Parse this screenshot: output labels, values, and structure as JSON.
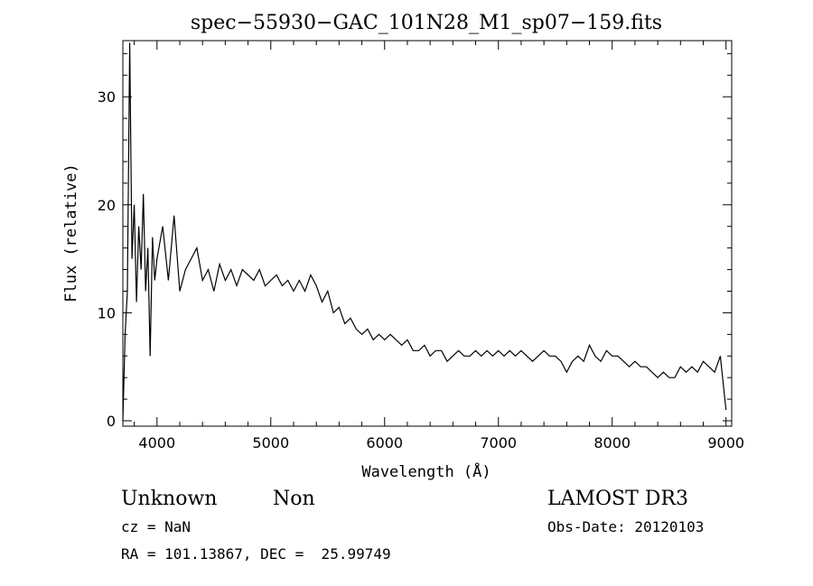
{
  "chart_data": {
    "type": "line",
    "title": "spec−55930−GAC_101N28_M1_sp07−159.fits",
    "xlabel": "Wavelength (Å)",
    "ylabel": "Flux (relative)",
    "xlim": [
      3700,
      9050
    ],
    "ylim": [
      -0.5,
      35.2
    ],
    "x_ticks": [
      4000,
      5000,
      6000,
      7000,
      8000,
      9000
    ],
    "y_ticks": [
      0,
      10,
      20,
      30
    ],
    "grid": false,
    "series": [
      {
        "x": [
          3700,
          3720,
          3740,
          3760,
          3780,
          3800,
          3820,
          3840,
          3860,
          3880,
          3900,
          3920,
          3940,
          3960,
          3980,
          4000,
          4050,
          4100,
          4150,
          4200,
          4250,
          4300,
          4350,
          4400,
          4450,
          4500,
          4550,
          4600,
          4650,
          4700,
          4750,
          4800,
          4850,
          4900,
          4950,
          5000,
          5050,
          5100,
          5150,
          5200,
          5250,
          5300,
          5350,
          5400,
          5450,
          5500,
          5550,
          5600,
          5650,
          5700,
          5750,
          5800,
          5850,
          5900,
          5950,
          6000,
          6050,
          6100,
          6150,
          6200,
          6250,
          6300,
          6350,
          6400,
          6450,
          6500,
          6550,
          6600,
          6650,
          6700,
          6750,
          6800,
          6850,
          6900,
          6950,
          7000,
          7050,
          7100,
          7150,
          7200,
          7250,
          7300,
          7350,
          7400,
          7450,
          7500,
          7550,
          7600,
          7650,
          7700,
          7750,
          7800,
          7850,
          7900,
          7950,
          8000,
          8050,
          8100,
          8150,
          8200,
          8250,
          8300,
          8350,
          8400,
          8450,
          8500,
          8550,
          8600,
          8650,
          8700,
          8750,
          8800,
          8850,
          8900,
          8950,
          9000
        ],
        "y": [
          0.0,
          8.0,
          12.0,
          35.0,
          15.0,
          20.0,
          11.0,
          18.0,
          14.0,
          21.0,
          12.0,
          16.0,
          6.0,
          17.0,
          13.0,
          15.0,
          18.0,
          13.0,
          19.0,
          12.0,
          14.0,
          15.0,
          16.0,
          13.0,
          14.0,
          12.0,
          14.5,
          13.0,
          14.0,
          12.5,
          14.0,
          13.5,
          13.0,
          14.0,
          12.5,
          13.0,
          13.5,
          12.5,
          13.0,
          12.0,
          13.0,
          12.0,
          13.5,
          12.5,
          11.0,
          12.0,
          10.0,
          10.5,
          9.0,
          9.5,
          8.5,
          8.0,
          8.5,
          7.5,
          8.0,
          7.5,
          8.0,
          7.5,
          7.0,
          7.5,
          6.5,
          6.5,
          7.0,
          6.0,
          6.5,
          6.5,
          5.5,
          6.0,
          6.5,
          6.0,
          6.0,
          6.5,
          6.0,
          6.5,
          6.0,
          6.5,
          6.0,
          6.5,
          6.0,
          6.5,
          6.0,
          5.5,
          6.0,
          6.5,
          6.0,
          6.0,
          5.5,
          4.5,
          5.5,
          6.0,
          5.5,
          7.0,
          6.0,
          5.5,
          6.5,
          6.0,
          6.0,
          5.5,
          5.0,
          5.5,
          5.0,
          5.0,
          4.5,
          4.0,
          4.5,
          4.0,
          4.0,
          5.0,
          4.5,
          5.0,
          4.5,
          5.5,
          5.0,
          4.5,
          6.0,
          1.0
        ]
      }
    ]
  },
  "info": {
    "class_label": "Unknown",
    "subclass_label": "Non",
    "survey_label": "LAMOST DR3",
    "cz_text": "cz = NaN",
    "obs_date_text": "Obs-Date: 20120103",
    "coords_text": "RA = 101.13867, DEC =  25.99749"
  },
  "colors": {
    "line": "#000000",
    "background": "#ffffff"
  }
}
